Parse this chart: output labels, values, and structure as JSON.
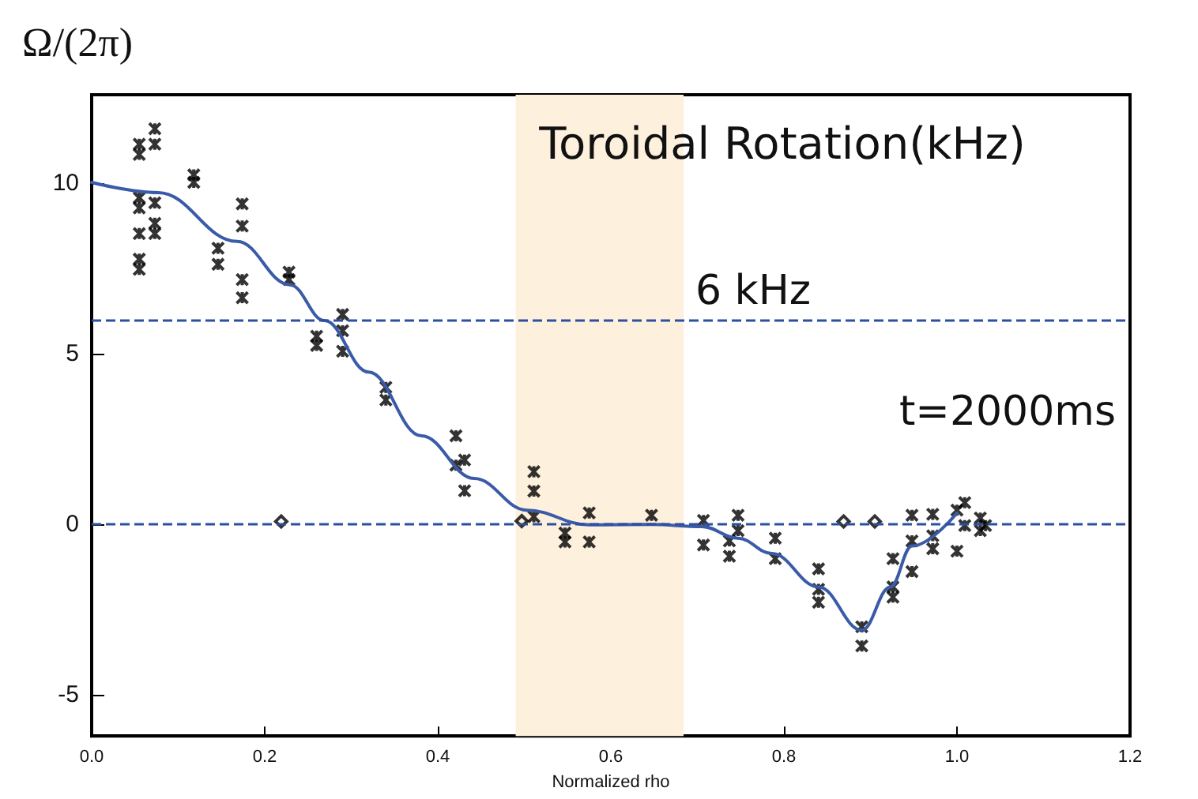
{
  "chart_data": {
    "type": "scatter",
    "title": "Toroidal Rotation(kHz)",
    "xlabel": "Normalized rho",
    "ylabel": "Ω/(2π)",
    "annotations": [
      "t=2000ms"
    ],
    "xlim": [
      0,
      1.2
    ],
    "xticks": [
      {
        "value": 0,
        "label": "0.0"
      },
      0.2,
      0.4,
      0.6,
      0.8,
      {
        "value": 1,
        "label": "1.0"
      },
      1.2
    ],
    "ylim": [
      -6.2,
      12.6
    ],
    "yticks": [
      -5,
      0,
      5,
      10
    ],
    "grid": false,
    "ref_lines": [
      {
        "axis": "y",
        "value": 6,
        "label": "6 kHz",
        "color": "#2d4fa0",
        "line_style": "dashed"
      },
      {
        "axis": "y",
        "value": 0,
        "label": null,
        "color": "#2d4fa0",
        "line_style": "dashed"
      }
    ],
    "bands": [
      {
        "axis": "x",
        "from": 0.49,
        "to": 0.684,
        "label": null,
        "color": "#fdf0dc"
      }
    ],
    "series": [
      {
        "color": "#000000",
        "marker": "cross",
        "x": [
          0.055,
          0.055,
          0.055,
          0.055,
          0.055,
          0.055,
          0.055,
          0.073,
          0.073,
          0.073,
          0.073,
          0.073,
          0.118,
          0.118,
          0.146,
          0.146,
          0.174,
          0.174,
          0.174,
          0.174,
          0.228,
          0.228,
          0.26,
          0.26,
          0.29,
          0.29,
          0.29,
          0.34,
          0.34,
          0.421,
          0.421,
          0.431,
          0.431,
          0.511,
          0.511,
          0.511,
          0.547,
          0.547,
          0.575,
          0.575,
          0.647,
          0.707,
          0.707,
          0.737,
          0.737,
          0.747,
          0.747,
          0.79,
          0.79,
          0.84,
          0.84,
          0.84,
          0.89,
          0.89,
          0.926,
          0.926,
          0.926,
          0.948,
          0.948,
          0.948,
          0.972,
          0.972,
          0.972,
          1.0,
          1.0,
          1.009,
          1.009,
          1.027,
          1.027,
          1.033
        ],
        "values": [
          11.15,
          10.85,
          9.58,
          9.28,
          8.53,
          7.78,
          7.48,
          11.6,
          11.15,
          9.43,
          8.83,
          8.53,
          10.25,
          10.03,
          8.1,
          7.63,
          9.4,
          8.75,
          7.18,
          6.65,
          7.4,
          7.18,
          5.52,
          5.25,
          6.16,
          5.68,
          5.08,
          4.02,
          3.65,
          2.6,
          1.74,
          1.89,
          0.99,
          1.55,
          0.98,
          0.23,
          -0.25,
          -0.51,
          0.34,
          -0.51,
          0.27,
          0.12,
          -0.6,
          -0.48,
          -0.93,
          0.27,
          -0.18,
          -0.4,
          -1.0,
          -1.3,
          -1.9,
          -2.28,
          -3.0,
          -3.56,
          -1.0,
          -1.83,
          -2.13,
          0.27,
          -0.48,
          -1.38,
          0.3,
          -0.33,
          -0.71,
          0.42,
          -0.78,
          0.64,
          -0.03,
          0.19,
          -0.18,
          -0.03
        ]
      },
      {
        "color": "#000000",
        "marker": "diamond",
        "x": [
          0.219,
          0.497,
          0.869,
          0.905
        ],
        "values": [
          0.09,
          0.1,
          0.09,
          0.09
        ]
      },
      {
        "type": "line",
        "color": "#3a5ba8",
        "marker": "none",
        "line_style": "solid",
        "x": [
          0,
          0.077,
          0.168,
          0.229,
          0.269,
          0.32,
          0.381,
          0.442,
          0.503,
          0.575,
          0.647,
          0.705,
          0.747,
          0.786,
          0.84,
          0.89,
          0.923,
          0.948,
          1.0
        ],
        "values": [
          10.03,
          9.73,
          8.3,
          7.03,
          5.98,
          4.47,
          2.6,
          1.35,
          0.42,
          -0.01,
          0.0,
          -0.06,
          -0.4,
          -0.85,
          -1.83,
          -3.1,
          -1.83,
          -0.63,
          0.34
        ]
      }
    ]
  }
}
